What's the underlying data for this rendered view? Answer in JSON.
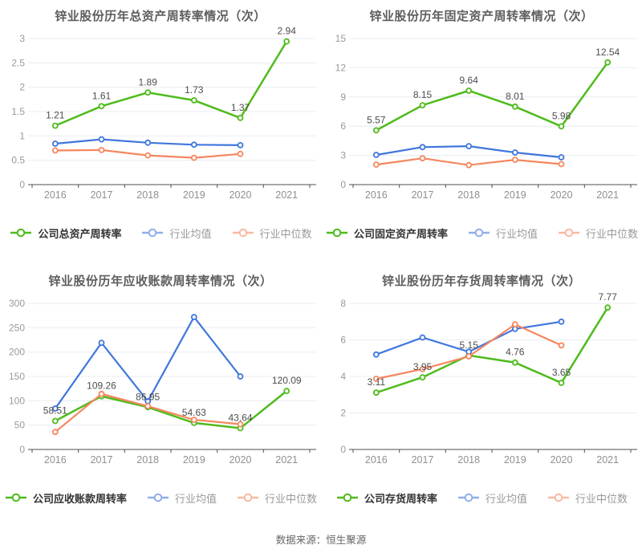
{
  "page": {
    "source_note": "数据来源：恒生聚源"
  },
  "colors": {
    "company": "#4fbb1c",
    "industry_mean": "#3f76dd",
    "industry_median": "#f5875f",
    "grid": "#e8ecf4",
    "axis": "#4d4d4d",
    "tick_text": "#999999",
    "data_label": "#4d4d4d",
    "title_text": "#5e5e5e"
  },
  "chart_data": [
    {
      "type": "line",
      "title": "锌业股份历年总资产周转率情况（次）",
      "x": [
        "2016",
        "2017",
        "2018",
        "2019",
        "2020",
        "2021"
      ],
      "ylim": [
        0,
        3
      ],
      "yticks": [
        0,
        0.5,
        1,
        1.5,
        2,
        2.5,
        3
      ],
      "grid": true,
      "legend_position": "bottom",
      "series": [
        {
          "name": "公司总资产周转率",
          "color_key": "company",
          "values": [
            1.21,
            1.61,
            1.89,
            1.73,
            1.37,
            2.94
          ],
          "labels": [
            "1.21",
            "1.61",
            "1.89",
            "1.73",
            "1.37",
            "2.94"
          ]
        },
        {
          "name": "行业均值",
          "color_key": "industry_mean",
          "values": [
            0.84,
            0.93,
            0.86,
            0.82,
            0.81
          ]
        },
        {
          "name": "行业中位数",
          "color_key": "industry_median",
          "values": [
            0.7,
            0.71,
            0.6,
            0.55,
            0.63
          ]
        }
      ]
    },
    {
      "type": "line",
      "title": "锌业股份历年固定资产周转率情况（次）",
      "x": [
        "2016",
        "2017",
        "2018",
        "2019",
        "2020",
        "2021"
      ],
      "ylim": [
        0,
        15
      ],
      "yticks": [
        0,
        3,
        6,
        9,
        12,
        15
      ],
      "grid": true,
      "legend_position": "bottom",
      "series": [
        {
          "name": "公司固定资产周转率",
          "color_key": "company",
          "values": [
            5.57,
            8.15,
            9.64,
            8.01,
            5.98,
            12.54
          ],
          "labels": [
            "5.57",
            "8.15",
            "9.64",
            "8.01",
            "5.98",
            "12.54"
          ]
        },
        {
          "name": "行业均值",
          "color_key": "industry_mean",
          "values": [
            3.05,
            3.85,
            3.95,
            3.3,
            2.8
          ]
        },
        {
          "name": "行业中位数",
          "color_key": "industry_median",
          "values": [
            2.05,
            2.7,
            2.0,
            2.55,
            2.1
          ]
        }
      ]
    },
    {
      "type": "line",
      "title": "锌业股份历年应收账款周转率情况（次）",
      "x": [
        "2016",
        "2017",
        "2018",
        "2019",
        "2020",
        "2021"
      ],
      "ylim": [
        0,
        300
      ],
      "yticks": [
        0,
        50,
        100,
        150,
        200,
        250,
        300
      ],
      "grid": true,
      "legend_position": "bottom",
      "series": [
        {
          "name": "公司应收账款周转率",
          "color_key": "company",
          "values": [
            58.51,
            109.26,
            86.95,
            54.63,
            43.64,
            120.09
          ],
          "labels": [
            "58.51",
            "109.26",
            "86.95",
            "54.63",
            "43.64",
            "120.09"
          ]
        },
        {
          "name": "行业均值",
          "color_key": "industry_mean",
          "values": [
            84,
            219,
            99,
            272,
            150
          ]
        },
        {
          "name": "行业中位数",
          "color_key": "industry_median",
          "values": [
            36,
            114,
            89,
            61,
            52
          ]
        }
      ]
    },
    {
      "type": "line",
      "title": "锌业股份历年存货周转率情况（次）",
      "x": [
        "2016",
        "2017",
        "2018",
        "2019",
        "2020",
        "2021"
      ],
      "ylim": [
        0,
        8
      ],
      "yticks": [
        0,
        2,
        4,
        6,
        8
      ],
      "grid": true,
      "legend_position": "bottom",
      "series": [
        {
          "name": "公司存货周转率",
          "color_key": "company",
          "values": [
            3.11,
            3.95,
            5.15,
            4.76,
            3.65,
            7.77
          ],
          "labels": [
            "3.11",
            "3.95",
            "5.15",
            "4.76",
            "3.65",
            "7.77"
          ]
        },
        {
          "name": "行业均值",
          "color_key": "industry_mean",
          "values": [
            5.2,
            6.13,
            5.35,
            6.6,
            7.0
          ]
        },
        {
          "name": "行业中位数",
          "color_key": "industry_median",
          "values": [
            3.87,
            4.4,
            5.1,
            6.85,
            5.7
          ]
        }
      ]
    }
  ]
}
